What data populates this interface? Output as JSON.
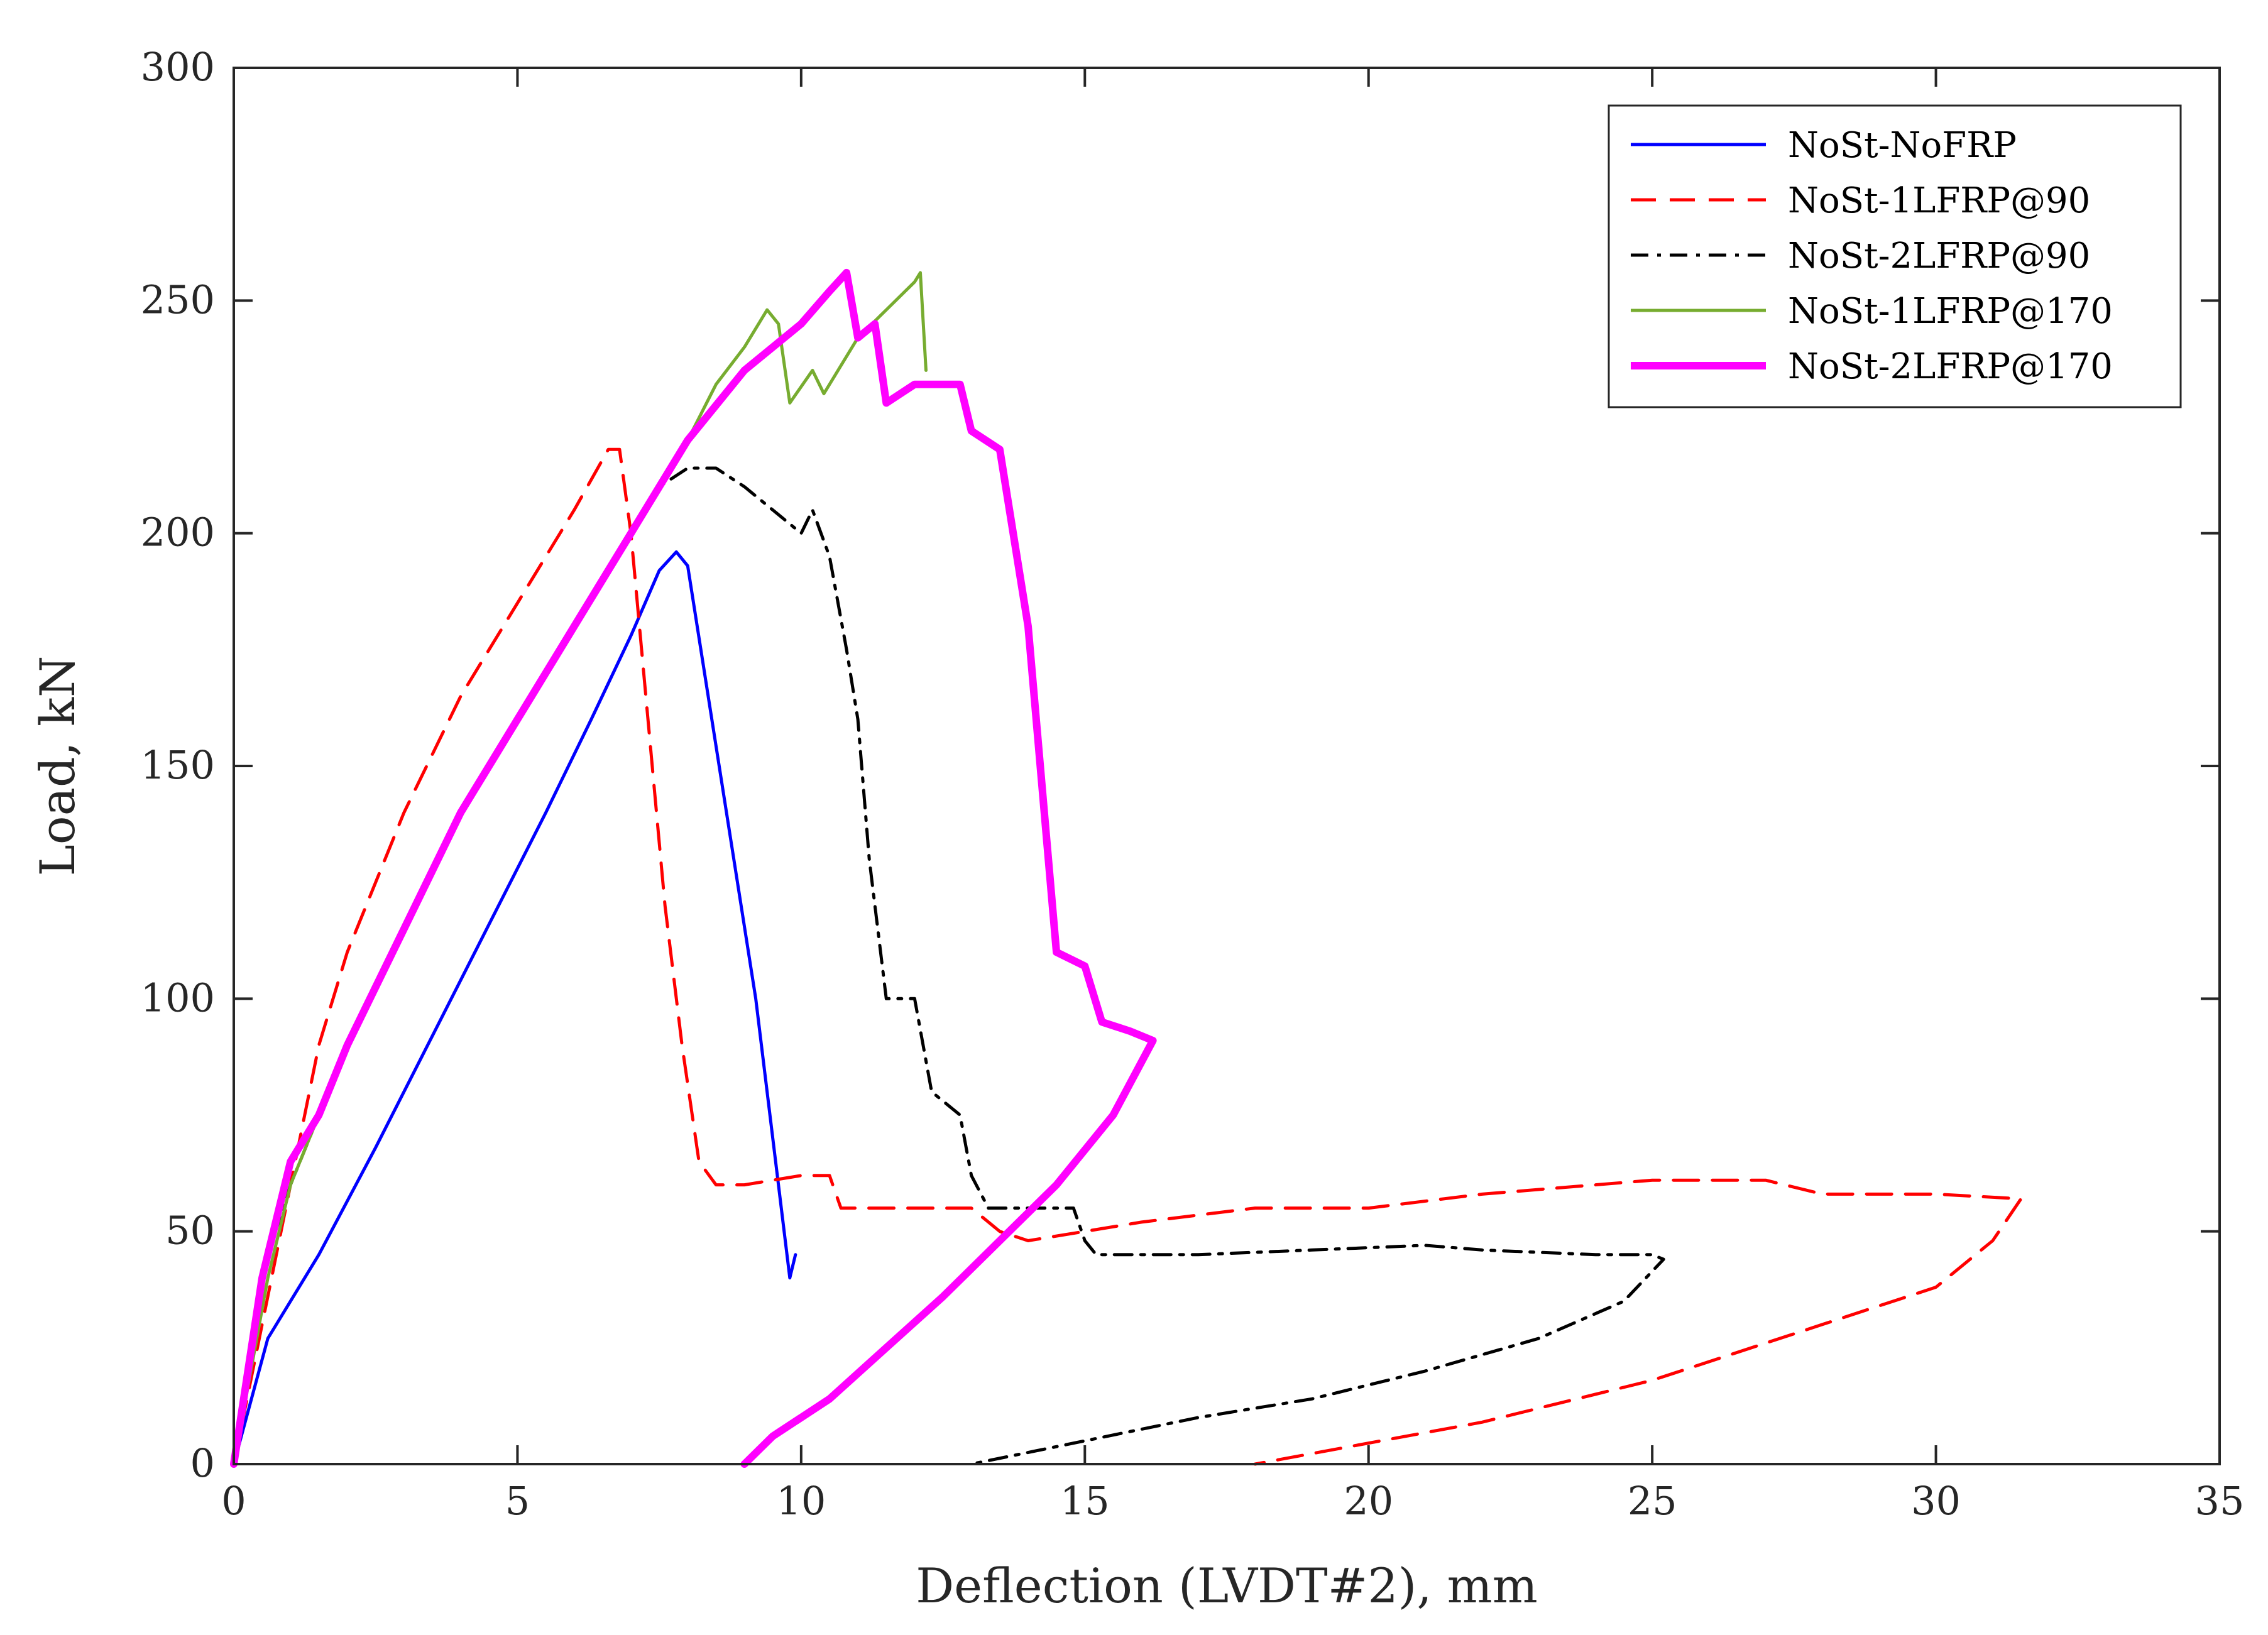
{
  "chart_data": {
    "type": "line",
    "title": "",
    "xlabel": "Deflection (LVDT#2), mm",
    "ylabel": "Load, kN",
    "xlim": [
      0,
      35
    ],
    "ylim": [
      0,
      300
    ],
    "xticks": [
      "0",
      "5",
      "10",
      "15",
      "20",
      "25",
      "30",
      "35"
    ],
    "yticks": [
      "0",
      "50",
      "100",
      "150",
      "200",
      "250",
      "300"
    ],
    "grid": false,
    "legend_position": "top-right",
    "series": [
      {
        "name": "NoSt-NoFRP",
        "color": "#0000ff",
        "style": "solid",
        "points": [
          [
            0,
            0
          ],
          [
            0.6,
            27
          ],
          [
            1.5,
            45
          ],
          [
            2.5,
            68
          ],
          [
            3.5,
            92
          ],
          [
            4.5,
            116
          ],
          [
            5.5,
            140
          ],
          [
            6.3,
            160
          ],
          [
            7.0,
            178
          ],
          [
            7.5,
            192
          ],
          [
            7.8,
            196
          ],
          [
            8.0,
            193
          ],
          [
            9.2,
            100
          ],
          [
            9.8,
            40
          ],
          [
            9.9,
            45
          ]
        ]
      },
      {
        "name": "NoSt-1LFRP@90",
        "color": "#ff0000",
        "style": "dashed",
        "points": [
          [
            0,
            0
          ],
          [
            0.5,
            30
          ],
          [
            1.0,
            60
          ],
          [
            1.5,
            90
          ],
          [
            2.0,
            110
          ],
          [
            3.0,
            140
          ],
          [
            4.0,
            165
          ],
          [
            5.0,
            185
          ],
          [
            6.0,
            205
          ],
          [
            6.6,
            218
          ],
          [
            6.8,
            218
          ],
          [
            7.0,
            200
          ],
          [
            7.3,
            160
          ],
          [
            7.6,
            120
          ],
          [
            7.9,
            90
          ],
          [
            8.2,
            65
          ],
          [
            8.5,
            60
          ],
          [
            9.0,
            60
          ],
          [
            10.0,
            62
          ],
          [
            10.5,
            62
          ],
          [
            10.7,
            55
          ],
          [
            12.0,
            55
          ],
          [
            13.0,
            55
          ],
          [
            13.5,
            50
          ],
          [
            14.0,
            48
          ],
          [
            15.0,
            50
          ],
          [
            16.0,
            52
          ],
          [
            18.0,
            55
          ],
          [
            20.0,
            55
          ],
          [
            22.0,
            58
          ],
          [
            24.0,
            60
          ],
          [
            25.0,
            61
          ],
          [
            27.0,
            61
          ],
          [
            28.0,
            58
          ],
          [
            30.0,
            58
          ],
          [
            31.5,
            57
          ],
          [
            31.0,
            48
          ],
          [
            30.0,
            38
          ],
          [
            28.0,
            30
          ],
          [
            25.0,
            18
          ],
          [
            22.0,
            9
          ],
          [
            18.0,
            0
          ]
        ]
      },
      {
        "name": "NoSt-2LFRP@90",
        "color": "#000000",
        "style": "dashdot",
        "points": [
          [
            0,
            0
          ],
          [
            0.6,
            45
          ],
          [
            1.0,
            60
          ],
          [
            2.0,
            90
          ],
          [
            3.0,
            115
          ],
          [
            4.0,
            140
          ],
          [
            5.0,
            160
          ],
          [
            6.0,
            180
          ],
          [
            7.0,
            200
          ],
          [
            7.5,
            210
          ],
          [
            8.0,
            214
          ],
          [
            8.5,
            214
          ],
          [
            9.0,
            210
          ],
          [
            9.5,
            205
          ],
          [
            10.0,
            200
          ],
          [
            10.2,
            205
          ],
          [
            10.5,
            195
          ],
          [
            10.8,
            175
          ],
          [
            11.0,
            160
          ],
          [
            11.2,
            130
          ],
          [
            11.5,
            100
          ],
          [
            12.0,
            100
          ],
          [
            12.3,
            80
          ],
          [
            12.8,
            75
          ],
          [
            13.0,
            62
          ],
          [
            13.3,
            55
          ],
          [
            14.0,
            55
          ],
          [
            14.8,
            55
          ],
          [
            15.0,
            48
          ],
          [
            15.2,
            45
          ],
          [
            17.0,
            45
          ],
          [
            19.0,
            46
          ],
          [
            21.0,
            47
          ],
          [
            22.0,
            46
          ],
          [
            24.0,
            45
          ],
          [
            25.0,
            45
          ],
          [
            25.2,
            44
          ],
          [
            24.5,
            35
          ],
          [
            23.0,
            27
          ],
          [
            21.0,
            20
          ],
          [
            19.0,
            14
          ],
          [
            17.0,
            10
          ],
          [
            15.0,
            5
          ],
          [
            13.0,
            0
          ]
        ]
      },
      {
        "name": "NoSt-1LFRP@170",
        "color": "#77ac30",
        "style": "solid",
        "points": [
          [
            0,
            0
          ],
          [
            0.6,
            40
          ],
          [
            1.0,
            60
          ],
          [
            2.0,
            90
          ],
          [
            3.0,
            115
          ],
          [
            4.0,
            140
          ],
          [
            5.0,
            160
          ],
          [
            6.0,
            180
          ],
          [
            7.0,
            200
          ],
          [
            8.0,
            220
          ],
          [
            8.5,
            232
          ],
          [
            9.0,
            240
          ],
          [
            9.4,
            248
          ],
          [
            9.6,
            245
          ],
          [
            9.8,
            228
          ],
          [
            10.2,
            235
          ],
          [
            10.4,
            230
          ],
          [
            11.0,
            242
          ],
          [
            11.5,
            248
          ],
          [
            12.0,
            254
          ],
          [
            12.1,
            256
          ],
          [
            12.2,
            235
          ]
        ]
      },
      {
        "name": "NoSt-2LFRP@170",
        "color": "#ff00ff",
        "style": "solid-thick",
        "points": [
          [
            0,
            0
          ],
          [
            0.5,
            40
          ],
          [
            1.0,
            65
          ],
          [
            1.5,
            75
          ],
          [
            2.0,
            90
          ],
          [
            3.0,
            115
          ],
          [
            4.0,
            140
          ],
          [
            5.0,
            160
          ],
          [
            6.0,
            180
          ],
          [
            7.0,
            200
          ],
          [
            8.0,
            220
          ],
          [
            9.0,
            235
          ],
          [
            10.0,
            245
          ],
          [
            10.5,
            252
          ],
          [
            10.8,
            256
          ],
          [
            11.0,
            242
          ],
          [
            11.3,
            245
          ],
          [
            11.5,
            228
          ],
          [
            12.0,
            232
          ],
          [
            12.5,
            232
          ],
          [
            12.8,
            232
          ],
          [
            13.0,
            222
          ],
          [
            13.5,
            218
          ],
          [
            14.0,
            180
          ],
          [
            14.5,
            110
          ],
          [
            15.0,
            107
          ],
          [
            15.3,
            95
          ],
          [
            15.8,
            93
          ],
          [
            16.2,
            91
          ],
          [
            15.5,
            75
          ],
          [
            14.5,
            60
          ],
          [
            13.5,
            48
          ],
          [
            12.5,
            36
          ],
          [
            11.5,
            25
          ],
          [
            10.5,
            14
          ],
          [
            9.5,
            6
          ],
          [
            9.0,
            0
          ]
        ]
      }
    ]
  }
}
